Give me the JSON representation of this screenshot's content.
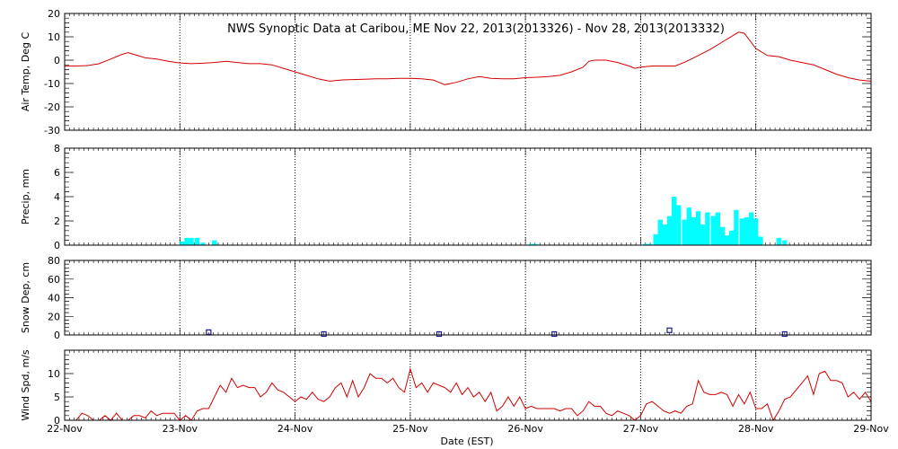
{
  "chart_data": {
    "type": "multi-panel",
    "title": "NWS Synoptic Data at Caribou, ME   Nov 22, 2013(2013326) - Nov 28, 2013(2013332)",
    "xlabel": "Date (EST)",
    "x_range": [
      0,
      7
    ],
    "x_ticks": [
      {
        "v": 0,
        "label": "22-Nov"
      },
      {
        "v": 1,
        "label": "23-Nov"
      },
      {
        "v": 2,
        "label": "24-Nov"
      },
      {
        "v": 3,
        "label": "25-Nov"
      },
      {
        "v": 4,
        "label": "26-Nov"
      },
      {
        "v": 5,
        "label": "27-Nov"
      },
      {
        "v": 6,
        "label": "28-Nov"
      },
      {
        "v": 7,
        "label": "29-Nov"
      }
    ],
    "grid": "dotted vertical at each day",
    "panels": [
      {
        "id": "temp",
        "type": "line",
        "ylabel": "Air Temp, Deg C",
        "ylim": [
          -30,
          20
        ],
        "yticks": [
          -30,
          -20,
          -10,
          0,
          10,
          20
        ],
        "color": "#d40000",
        "points": [
          [
            0,
            -2.5
          ],
          [
            0.1,
            -2.5
          ],
          [
            0.2,
            -2.3
          ],
          [
            0.3,
            -1.5
          ],
          [
            0.4,
            0.5
          ],
          [
            0.5,
            2.5
          ],
          [
            0.55,
            3.2
          ],
          [
            0.6,
            2.5
          ],
          [
            0.7,
            1
          ],
          [
            0.8,
            0.5
          ],
          [
            0.9,
            -0.5
          ],
          [
            1,
            -1.2
          ],
          [
            1.1,
            -1.5
          ],
          [
            1.2,
            -1.3
          ],
          [
            1.3,
            -1
          ],
          [
            1.4,
            -0.5
          ],
          [
            1.5,
            -1
          ],
          [
            1.6,
            -1.5
          ],
          [
            1.7,
            -1.5
          ],
          [
            1.8,
            -2
          ],
          [
            1.9,
            -3.5
          ],
          [
            2,
            -5
          ],
          [
            2.1,
            -6.5
          ],
          [
            2.2,
            -8
          ],
          [
            2.3,
            -9
          ],
          [
            2.4,
            -8.5
          ],
          [
            2.5,
            -8.3
          ],
          [
            2.6,
            -8.2
          ],
          [
            2.7,
            -8
          ],
          [
            2.8,
            -8
          ],
          [
            2.9,
            -7.8
          ],
          [
            3,
            -7.8
          ],
          [
            3.1,
            -8
          ],
          [
            3.2,
            -8.5
          ],
          [
            3.25,
            -9.5
          ],
          [
            3.3,
            -10.5
          ],
          [
            3.4,
            -9.5
          ],
          [
            3.5,
            -8
          ],
          [
            3.6,
            -7
          ],
          [
            3.7,
            -7.8
          ],
          [
            3.8,
            -8
          ],
          [
            3.9,
            -8
          ],
          [
            4,
            -7.5
          ],
          [
            4.1,
            -7.3
          ],
          [
            4.2,
            -7
          ],
          [
            4.3,
            -6.5
          ],
          [
            4.4,
            -5
          ],
          [
            4.5,
            -3
          ],
          [
            4.55,
            -0.5
          ],
          [
            4.6,
            0
          ],
          [
            4.7,
            0
          ],
          [
            4.8,
            -1
          ],
          [
            4.9,
            -2.5
          ],
          [
            4.95,
            -3.5
          ],
          [
            5,
            -3
          ],
          [
            5.1,
            -2.5
          ],
          [
            5.2,
            -2.5
          ],
          [
            5.3,
            -2.5
          ],
          [
            5.4,
            -0.5
          ],
          [
            5.5,
            2
          ],
          [
            5.6,
            4.5
          ],
          [
            5.7,
            7.5
          ],
          [
            5.8,
            10.5
          ],
          [
            5.85,
            12
          ],
          [
            5.9,
            11.5
          ],
          [
            6,
            5
          ],
          [
            6.1,
            2
          ],
          [
            6.2,
            1.5
          ],
          [
            6.3,
            0
          ],
          [
            6.4,
            -1
          ],
          [
            6.5,
            -2
          ],
          [
            6.6,
            -4
          ],
          [
            6.7,
            -6
          ],
          [
            6.8,
            -7.5
          ],
          [
            6.9,
            -8.5
          ],
          [
            7,
            -9
          ]
        ]
      },
      {
        "id": "precip",
        "type": "bar",
        "ylabel": "Precip, mm",
        "ylim": [
          0,
          8
        ],
        "yticks": [
          0,
          2,
          4,
          6,
          8
        ],
        "color": "#00ffff",
        "bar_width": 0.0417,
        "bars": [
          [
            1.02,
            0.3
          ],
          [
            1.06,
            0.6
          ],
          [
            1.1,
            0.6
          ],
          [
            1.15,
            0.6
          ],
          [
            1.2,
            0.2
          ],
          [
            1.3,
            0.4
          ],
          [
            4.05,
            0.1
          ],
          [
            4.09,
            0.1
          ],
          [
            5.04,
            0.1
          ],
          [
            5.08,
            0.1
          ],
          [
            5.13,
            0.9
          ],
          [
            5.17,
            2.1
          ],
          [
            5.21,
            1.7
          ],
          [
            5.25,
            2.4
          ],
          [
            5.29,
            4
          ],
          [
            5.33,
            3.3
          ],
          [
            5.38,
            2.1
          ],
          [
            5.42,
            3.1
          ],
          [
            5.46,
            2.3
          ],
          [
            5.5,
            2.8
          ],
          [
            5.54,
            1.7
          ],
          [
            5.58,
            2.7
          ],
          [
            5.63,
            2.4
          ],
          [
            5.67,
            2.7
          ],
          [
            5.71,
            1.5
          ],
          [
            5.75,
            0.8
          ],
          [
            5.79,
            1.2
          ],
          [
            5.83,
            2.9
          ],
          [
            5.88,
            2.2
          ],
          [
            5.92,
            2.3
          ],
          [
            5.96,
            2.7
          ],
          [
            6,
            2.2
          ],
          [
            6.04,
            0.7
          ],
          [
            6.2,
            0.6
          ],
          [
            6.25,
            0.4
          ]
        ]
      },
      {
        "id": "snow",
        "type": "scatter",
        "ylabel": "Snow Dep, cm",
        "ylim": [
          0,
          80
        ],
        "yticks": [
          0,
          20,
          40,
          60,
          80
        ],
        "color": "#1a1a8c",
        "points": [
          [
            1.25,
            3
          ],
          [
            2.25,
            1
          ],
          [
            3.25,
            1
          ],
          [
            4.25,
            1
          ],
          [
            5.25,
            5
          ],
          [
            6.25,
            1
          ]
        ]
      },
      {
        "id": "wind",
        "type": "line",
        "ylabel": "Wind Spd, m/s",
        "ylim": [
          0,
          15
        ],
        "yticks": [
          0,
          5,
          10
        ],
        "color": "#d40000",
        "points": [
          [
            0.1,
            0
          ],
          [
            0.15,
            1.5
          ],
          [
            0.2,
            1
          ],
          [
            0.25,
            0
          ],
          [
            0.3,
            0
          ],
          [
            0.35,
            1
          ],
          [
            0.4,
            0
          ],
          [
            0.45,
            1.5
          ],
          [
            0.5,
            0
          ],
          [
            0.55,
            0
          ],
          [
            0.6,
            1
          ],
          [
            0.65,
            1
          ],
          [
            0.7,
            0.5
          ],
          [
            0.75,
            2
          ],
          [
            0.8,
            1
          ],
          [
            0.85,
            1.5
          ],
          [
            0.9,
            1.5
          ],
          [
            0.95,
            1.5
          ],
          [
            1,
            0
          ],
          [
            1.05,
            1
          ],
          [
            1.1,
            0
          ],
          [
            1.15,
            2
          ],
          [
            1.2,
            2.5
          ],
          [
            1.25,
            2.5
          ],
          [
            1.3,
            5
          ],
          [
            1.35,
            7.5
          ],
          [
            1.4,
            6
          ],
          [
            1.45,
            9
          ],
          [
            1.5,
            7
          ],
          [
            1.55,
            7.5
          ],
          [
            1.6,
            7
          ],
          [
            1.65,
            7
          ],
          [
            1.7,
            5
          ],
          [
            1.75,
            6
          ],
          [
            1.8,
            8
          ],
          [
            1.85,
            6.5
          ],
          [
            1.9,
            6
          ],
          [
            1.95,
            5
          ],
          [
            2,
            4
          ],
          [
            2.05,
            5
          ],
          [
            2.1,
            4.5
          ],
          [
            2.15,
            6
          ],
          [
            2.2,
            4.5
          ],
          [
            2.25,
            4
          ],
          [
            2.3,
            5
          ],
          [
            2.35,
            7
          ],
          [
            2.4,
            8
          ],
          [
            2.45,
            5
          ],
          [
            2.5,
            8.5
          ],
          [
            2.55,
            5
          ],
          [
            2.6,
            7
          ],
          [
            2.65,
            10
          ],
          [
            2.7,
            9
          ],
          [
            2.75,
            9
          ],
          [
            2.8,
            8
          ],
          [
            2.85,
            9
          ],
          [
            2.9,
            7
          ],
          [
            2.95,
            6
          ],
          [
            3,
            11
          ],
          [
            3.05,
            7
          ],
          [
            3.1,
            8
          ],
          [
            3.15,
            6
          ],
          [
            3.2,
            8
          ],
          [
            3.25,
            7.5
          ],
          [
            3.3,
            7
          ],
          [
            3.35,
            6
          ],
          [
            3.4,
            8
          ],
          [
            3.45,
            5.5
          ],
          [
            3.5,
            7
          ],
          [
            3.55,
            5
          ],
          [
            3.6,
            6
          ],
          [
            3.65,
            4
          ],
          [
            3.7,
            6
          ],
          [
            3.75,
            2
          ],
          [
            3.8,
            3
          ],
          [
            3.85,
            5
          ],
          [
            3.9,
            3
          ],
          [
            3.95,
            5
          ],
          [
            4,
            2.5
          ],
          [
            4.05,
            3
          ],
          [
            4.1,
            2.5
          ],
          [
            4.15,
            2.5
          ],
          [
            4.2,
            2.5
          ],
          [
            4.25,
            2.5
          ],
          [
            4.3,
            2
          ],
          [
            4.35,
            2.5
          ],
          [
            4.4,
            2.5
          ],
          [
            4.45,
            1
          ],
          [
            4.5,
            2
          ],
          [
            4.55,
            4
          ],
          [
            4.6,
            3
          ],
          [
            4.65,
            3
          ],
          [
            4.7,
            1.5
          ],
          [
            4.75,
            1
          ],
          [
            4.8,
            2
          ],
          [
            4.85,
            1.5
          ],
          [
            4.9,
            1
          ],
          [
            4.95,
            0
          ],
          [
            5,
            1
          ],
          [
            5.05,
            3.5
          ],
          [
            5.1,
            4
          ],
          [
            5.15,
            3
          ],
          [
            5.2,
            2
          ],
          [
            5.25,
            1.5
          ],
          [
            5.3,
            2
          ],
          [
            5.35,
            1.5
          ],
          [
            5.4,
            3
          ],
          [
            5.45,
            3.5
          ],
          [
            5.5,
            8.5
          ],
          [
            5.55,
            6
          ],
          [
            5.6,
            5.5
          ],
          [
            5.65,
            5.5
          ],
          [
            5.7,
            6
          ],
          [
            5.75,
            5.5
          ],
          [
            5.8,
            3
          ],
          [
            5.85,
            5.5
          ],
          [
            5.9,
            3.5
          ],
          [
            5.95,
            6
          ],
          [
            6,
            2.5
          ],
          [
            6.05,
            2.5
          ],
          [
            6.1,
            3.5
          ],
          [
            6.15,
            0
          ],
          [
            6.2,
            2
          ],
          [
            6.25,
            4.5
          ],
          [
            6.3,
            5
          ],
          [
            6.35,
            6.5
          ],
          [
            6.4,
            8
          ],
          [
            6.45,
            9.5
          ],
          [
            6.5,
            5.5
          ],
          [
            6.55,
            10
          ],
          [
            6.6,
            10.5
          ],
          [
            6.65,
            8.5
          ],
          [
            6.7,
            8.5
          ],
          [
            6.75,
            8
          ],
          [
            6.8,
            5
          ],
          [
            6.85,
            6
          ],
          [
            6.9,
            4.5
          ],
          [
            6.95,
            6
          ],
          [
            7,
            4
          ]
        ]
      }
    ]
  }
}
